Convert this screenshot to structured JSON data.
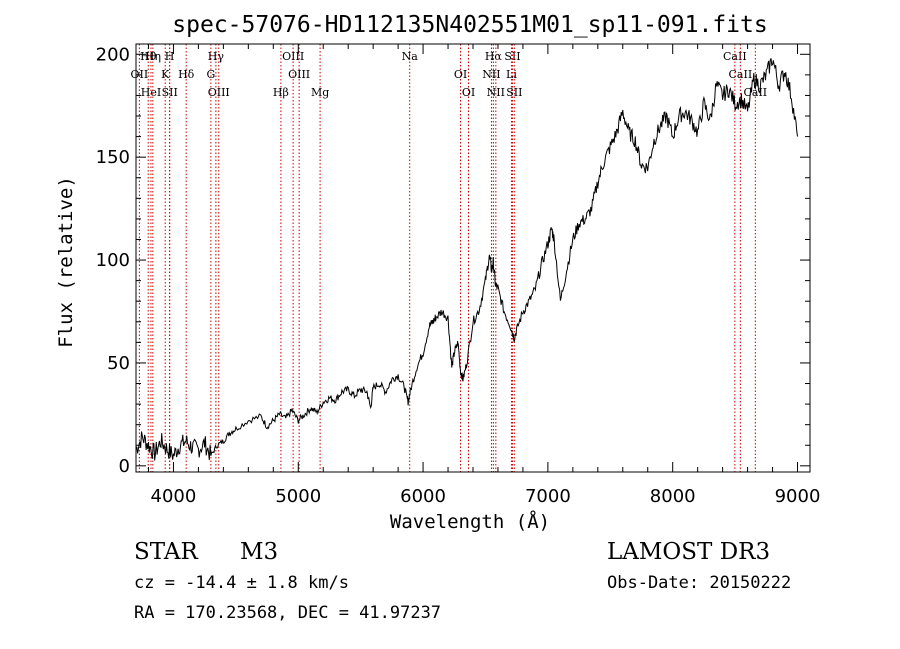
{
  "chart_data": {
    "type": "line",
    "title": "spec-57076-HD112135N402551M01_sp11-091.fits",
    "xlabel": "Wavelength (Å)",
    "ylabel": "Flux (relative)",
    "xlim": [
      3700,
      9100
    ],
    "ylim": [
      -3,
      205
    ],
    "xticks": [
      4000,
      5000,
      6000,
      7000,
      8000,
      9000
    ],
    "yticks": [
      0,
      50,
      100,
      150,
      200
    ],
    "grid": false,
    "legend": "none",
    "series": [
      {
        "name": "flux",
        "x": [
          3700,
          3750,
          3800,
          3850,
          3900,
          3950,
          4000,
          4050,
          4100,
          4150,
          4200,
          4250,
          4300,
          4350,
          4400,
          4450,
          4500,
          4600,
          4700,
          4750,
          4800,
          4850,
          4900,
          4950,
          5000,
          5050,
          5100,
          5150,
          5200,
          5250,
          5300,
          5350,
          5400,
          5450,
          5500,
          5550,
          5580,
          5600,
          5650,
          5700,
          5750,
          5800,
          5850,
          5880,
          5900,
          5950,
          6000,
          6050,
          6080,
          6100,
          6150,
          6200,
          6230,
          6250,
          6280,
          6300,
          6320,
          6350,
          6400,
          6450,
          6500,
          6530,
          6550,
          6563,
          6580,
          6600,
          6650,
          6700,
          6730,
          6750,
          6800,
          6850,
          6900,
          6950,
          7000,
          7030,
          7050,
          7100,
          7150,
          7200,
          7250,
          7300,
          7350,
          7400,
          7450,
          7500,
          7550,
          7600,
          7650,
          7700,
          7750,
          7800,
          7850,
          7900,
          7950,
          8000,
          8050,
          8100,
          8150,
          8200,
          8250,
          8300,
          8350,
          8400,
          8450,
          8500,
          8550,
          8600,
          8650,
          8700,
          8750,
          8800,
          8850,
          8900,
          8950,
          9000
        ],
        "y": [
          8,
          14,
          10,
          6,
          12,
          8,
          5,
          10,
          12,
          9,
          8,
          11,
          5,
          10,
          12,
          16,
          18,
          22,
          24,
          19,
          22,
          25,
          23,
          27,
          22,
          25,
          28,
          26,
          31,
          33,
          32,
          36,
          37,
          34,
          37,
          36,
          28,
          38,
          40,
          36,
          42,
          44,
          38,
          31,
          37,
          48,
          55,
          68,
          70,
          72,
          75,
          72,
          48,
          55,
          60,
          46,
          42,
          50,
          70,
          76,
          90,
          102,
          95,
          99,
          88,
          86,
          75,
          68,
          62,
          66,
          75,
          80,
          86,
          98,
          108,
          115,
          110,
          80,
          95,
          110,
          118,
          120,
          125,
          138,
          148,
          155,
          162,
          172,
          162,
          158,
          146,
          145,
          158,
          165,
          170,
          160,
          170,
          172,
          168,
          162,
          176,
          168,
          185,
          180,
          183,
          176,
          178,
          172,
          188,
          185,
          190,
          198,
          185,
          192,
          180,
          160
        ]
      }
    ],
    "line_marks": {
      "names": [
        "Hθ",
        "OII",
        "HeI",
        "Hη",
        "K",
        "SII",
        "H",
        "Hδ",
        "OIII",
        "Hγ",
        "G",
        "Hβ",
        "OIII",
        "OIII",
        "Mg",
        "Na",
        "OI",
        "OI",
        "Hα",
        "NII",
        "NII",
        "SII",
        "Li",
        "SII",
        "CaII",
        "CaII",
        "CaII"
      ],
      "wavelengths": [
        3798,
        3727,
        3820,
        3835,
        3934,
        3970,
        3969,
        4102,
        4363,
        4340,
        4300,
        4861,
        4959,
        5007,
        5175,
        5893,
        6300,
        6364,
        6563,
        6548,
        6583,
        6716,
        6708,
        6731,
        8498,
        8542,
        8662
      ]
    },
    "annotations": {
      "object_class": "STAR",
      "subclass": "M3",
      "survey": "LAMOST DR3",
      "cz": "cz = -14.4 ± 1.8 km/s",
      "obs_date": "Obs-Date: 20150222",
      "coords": "RA = 170.23568, DEC =  41.97237"
    }
  },
  "colors": {
    "line": "#000000",
    "marker": "#cc0000",
    "text": "#000000"
  }
}
